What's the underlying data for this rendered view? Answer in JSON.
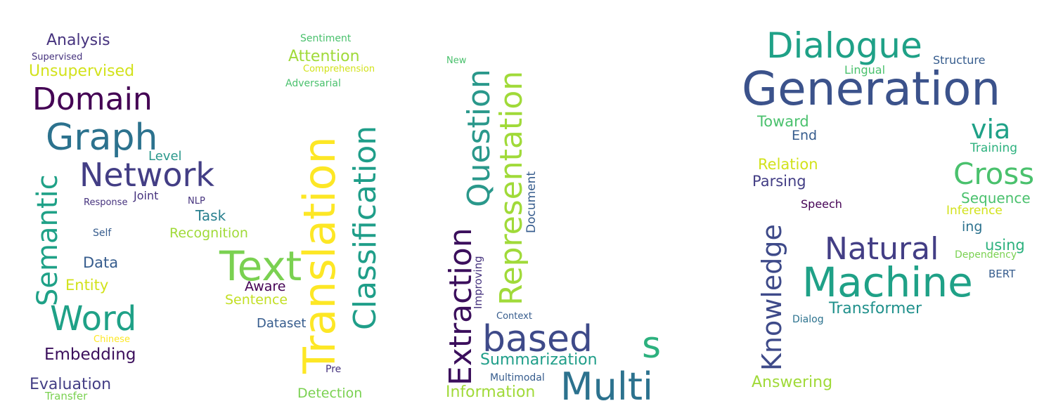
{
  "palette": {
    "dark_purple": "#3b0f5c",
    "indigo": "#46337e",
    "blue": "#365c8d",
    "teal_dark": "#277f8e",
    "teal": "#1fa187",
    "green": "#4ac16d",
    "light_green": "#a0da39",
    "yellow": "#e0e41a",
    "bright_yellow": "#fde725"
  },
  "clouds": [
    {
      "words": [
        {
          "text": "Analysis",
          "color": "#46337e"
        },
        {
          "text": "Supervised",
          "color": "#46337e"
        },
        {
          "text": "Unsupervised",
          "color": "#d2e21b"
        },
        {
          "text": "Domain",
          "color": "#440154"
        },
        {
          "text": "Graph",
          "color": "#2c728e"
        },
        {
          "text": "Network",
          "color": "#433e85"
        },
        {
          "text": "Level",
          "color": "#2a988b"
        },
        {
          "text": "Semantic",
          "color": "#1fa187"
        },
        {
          "text": "Joint",
          "color": "#46337e"
        },
        {
          "text": "Response",
          "color": "#46337e"
        },
        {
          "text": "NLP",
          "color": "#46337e"
        },
        {
          "text": "Task",
          "color": "#277f8e"
        },
        {
          "text": "Recognition",
          "color": "#a0da39"
        },
        {
          "text": "Self",
          "color": "#365c8d"
        },
        {
          "text": "Data",
          "color": "#365c8d"
        },
        {
          "text": "Entity",
          "color": "#d2e21b"
        },
        {
          "text": "Word",
          "color": "#1fa187"
        },
        {
          "text": "Chinese",
          "color": "#fde725"
        },
        {
          "text": "Embedding",
          "color": "#3b0f5c"
        },
        {
          "text": "Evaluation",
          "color": "#433e85"
        },
        {
          "text": "Transfer",
          "color": "#7ad151"
        },
        {
          "text": "Sentiment",
          "color": "#4ac16d"
        },
        {
          "text": "Attention",
          "color": "#a0da39"
        },
        {
          "text": "Comprehension",
          "color": "#d2e21b"
        },
        {
          "text": "Adversarial",
          "color": "#4ac16d"
        },
        {
          "text": "Translation",
          "color": "#fde725"
        },
        {
          "text": "Classification",
          "color": "#1f9e89"
        },
        {
          "text": "Text",
          "color": "#7ad151"
        },
        {
          "text": "Aware",
          "color": "#440154"
        },
        {
          "text": "Sentence",
          "color": "#c2df23"
        },
        {
          "text": "Dataset",
          "color": "#365c8d"
        },
        {
          "text": "Pre",
          "color": "#46337e"
        },
        {
          "text": "Detection",
          "color": "#7ad151"
        }
      ]
    },
    {
      "words": [
        {
          "text": "New",
          "color": "#4ac16d"
        },
        {
          "text": "Question",
          "color": "#2a988b"
        },
        {
          "text": "Representation",
          "color": "#a0da39"
        },
        {
          "text": "Document",
          "color": "#365c8d"
        },
        {
          "text": "Extraction",
          "color": "#3b0f5c"
        },
        {
          "text": "Improving",
          "color": "#46337e"
        },
        {
          "text": "Context",
          "color": "#365c8d"
        },
        {
          "text": "based",
          "color": "#3e4a89"
        },
        {
          "text": "s",
          "color": "#2cb17e"
        },
        {
          "text": "Summarization",
          "color": "#1f9e89"
        },
        {
          "text": "Multimodal",
          "color": "#365c8d"
        },
        {
          "text": "Multi",
          "color": "#2c728e"
        },
        {
          "text": "Information",
          "color": "#a0da39"
        }
      ]
    },
    {
      "words": [
        {
          "text": "Dialogue",
          "color": "#1fa187"
        },
        {
          "text": "Structure",
          "color": "#365c8d"
        },
        {
          "text": "Lingual",
          "color": "#4ac16d"
        },
        {
          "text": "Generation",
          "color": "#3b528b"
        },
        {
          "text": "Toward",
          "color": "#4ac16d"
        },
        {
          "text": "End",
          "color": "#365c8d"
        },
        {
          "text": "via",
          "color": "#1fa187"
        },
        {
          "text": "Training",
          "color": "#2cb17e"
        },
        {
          "text": "Relation",
          "color": "#d2e21b"
        },
        {
          "text": "Cross",
          "color": "#4ac16d"
        },
        {
          "text": "Parsing",
          "color": "#433e85"
        },
        {
          "text": "Sequence",
          "color": "#4ac16d"
        },
        {
          "text": "Speech",
          "color": "#440154"
        },
        {
          "text": "Inference",
          "color": "#d2e21b"
        },
        {
          "text": "Knowledge",
          "color": "#3e4a89"
        },
        {
          "text": "ing",
          "color": "#2c728e"
        },
        {
          "text": "Natural",
          "color": "#433e85"
        },
        {
          "text": "using",
          "color": "#2cb17e"
        },
        {
          "text": "Dependency",
          "color": "#7ad151"
        },
        {
          "text": "Machine",
          "color": "#1fa187"
        },
        {
          "text": "BERT",
          "color": "#365c8d"
        },
        {
          "text": "Transformer",
          "color": "#21918c"
        },
        {
          "text": "Dialog",
          "color": "#2c728e"
        },
        {
          "text": "Answering",
          "color": "#a0da39"
        }
      ]
    }
  ]
}
